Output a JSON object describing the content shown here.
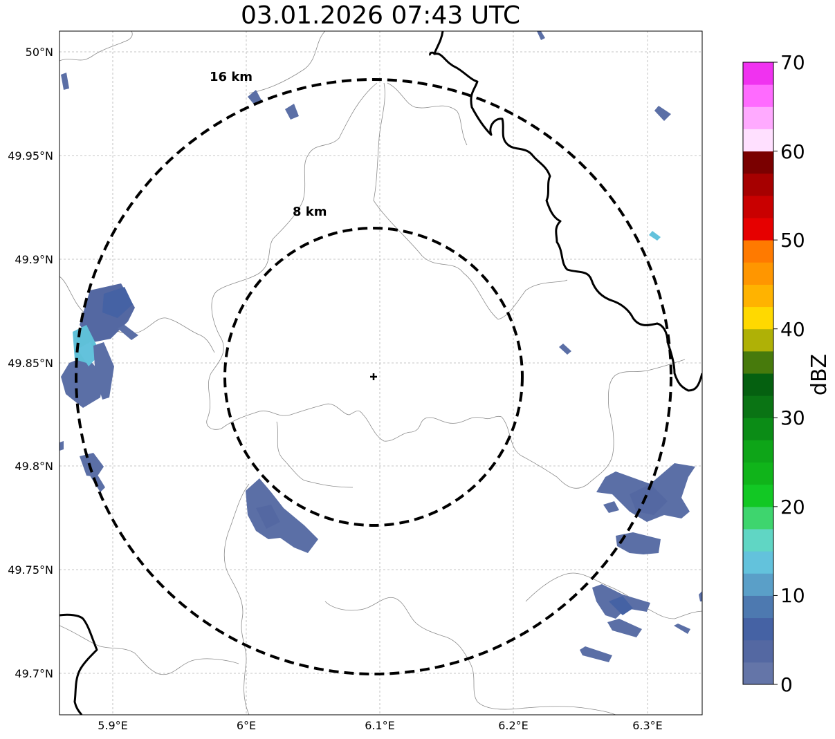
{
  "title": "03.01.2026 07:43 UTC",
  "map": {
    "lat_ticks": [
      "50°N",
      "49.95°N",
      "49.9°N",
      "49.85°N",
      "49.8°N",
      "49.75°N",
      "49.7°N"
    ],
    "lon_ticks": [
      "5.9°E",
      "6°E",
      "6.1°E",
      "6.2°E",
      "6.3°E"
    ],
    "rings": [
      {
        "name": "ring-16km",
        "label": "16 km",
        "radius_km": 16
      },
      {
        "name": "ring-8km",
        "label": "8 km",
        "radius_km": 8
      }
    ],
    "radar_site_marker": "plus",
    "echo_color": "#5b6fa6",
    "echo_light_color": "#5fc0d8",
    "border_color": "#000000",
    "admin_line_color": "#8a8a8a"
  },
  "colorbar": {
    "label": "dBZ",
    "ticks": [
      "0",
      "10",
      "20",
      "30",
      "40",
      "50",
      "60",
      "70"
    ],
    "levels": [
      "#6475a8",
      "#5468a2",
      "#4562a4",
      "#4d79b0",
      "#5a9fc8",
      "#63c2dc",
      "#60d6c4",
      "#3ed56e",
      "#12c824",
      "#10b41a",
      "#0ea518",
      "#0b8c16",
      "#0a7414",
      "#056010",
      "#477a0c",
      "#afb106",
      "#ffd900",
      "#ffb300",
      "#ff9600",
      "#ff7a00",
      "#e60000",
      "#c90000",
      "#a60000",
      "#7a0000",
      "#ffe0ff",
      "#ffaaff",
      "#ff6bff",
      "#f032f0"
    ]
  }
}
